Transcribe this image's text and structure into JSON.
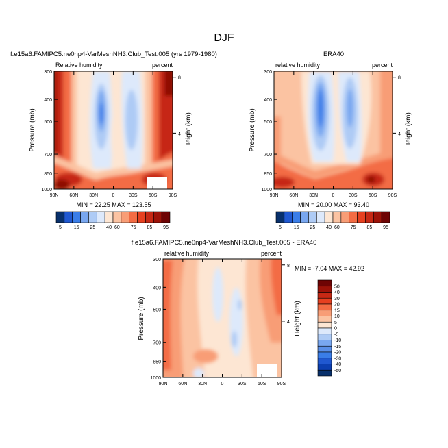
{
  "page_title": "DJF",
  "chart_data": [
    {
      "type": "heatmap",
      "title": "f.e15a6.FAMIPC5.ne0np4-VarMeshNH3.Club_Test.005 (yrs 1979-1980)",
      "left_label": "Relative humidity",
      "right_label": "percent",
      "xlabel": "",
      "ylabel": "Pressure (mb)",
      "right_axis_label": "Height (km)",
      "x_ticks": [
        "90N",
        "60N",
        "30N",
        "0",
        "30S",
        "60S",
        "90S"
      ],
      "y_ticks": [
        300,
        400,
        500,
        700,
        850,
        1000
      ],
      "right_ticks": [
        8,
        4
      ],
      "ylim": [
        1000,
        300
      ],
      "stats": "MIN = 22.25  MAX = 123.55",
      "min": 22.25,
      "max": 123.55,
      "levels": [
        5,
        15,
        25,
        40,
        60,
        75,
        85,
        95
      ],
      "colorbar_labels": [
        "5",
        "15",
        "25",
        "40",
        "60",
        "75",
        "85",
        "95"
      ],
      "colorbar_orientation": "horizontal"
    },
    {
      "type": "heatmap",
      "title": "ERA40",
      "left_label": "relative humidity",
      "right_label": "percent",
      "xlabel": "",
      "ylabel": "Pressure (mb)",
      "right_axis_label": "Height (km)",
      "x_ticks": [
        "90N",
        "60N",
        "30N",
        "0",
        "30S",
        "60S",
        "90S"
      ],
      "y_ticks": [
        300,
        400,
        500,
        700,
        850,
        1000
      ],
      "right_ticks": [
        8,
        4
      ],
      "ylim": [
        1000,
        300
      ],
      "stats": "MIN = 20.00  MAX = 93.40",
      "min": 20.0,
      "max": 93.4,
      "levels": [
        5,
        15,
        25,
        40,
        60,
        75,
        85,
        95
      ],
      "colorbar_labels": [
        "5",
        "15",
        "25",
        "40",
        "60",
        "75",
        "85",
        "95"
      ],
      "colorbar_orientation": "horizontal"
    },
    {
      "type": "heatmap",
      "title": "f.e15a6.FAMIPC5.ne0np4-VarMeshNH3.Club_Test.005 - ERA40",
      "left_label": "relative humidity",
      "right_label": "percent",
      "xlabel": "",
      "ylabel": "Pressure (mb)",
      "right_axis_label": "Height (km)",
      "x_ticks": [
        "90N",
        "60N",
        "30N",
        "0",
        "30S",
        "60S",
        "90S"
      ],
      "y_ticks": [
        300,
        400,
        500,
        700,
        850,
        1000
      ],
      "right_ticks": [
        8,
        4
      ],
      "ylim": [
        1000,
        300
      ],
      "stats": "MIN = -7.04  MAX = 42.92",
      "min": -7.04,
      "max": 42.92,
      "levels": [
        -50,
        -40,
        -30,
        -20,
        -15,
        -10,
        -5,
        0,
        5,
        10,
        15,
        20,
        30,
        40,
        50
      ],
      "colorbar_labels": [
        "50",
        "40",
        "30",
        "20",
        "15",
        "10",
        "5",
        "0",
        "-5",
        "-10",
        "-15",
        "-20",
        "-30",
        "-40",
        "-50"
      ],
      "colorbar_orientation": "vertical"
    }
  ],
  "colors": {
    "rh_scale": [
      "#08306b",
      "#2058d0",
      "#3a7de8",
      "#79a7f0",
      "#aecbf5",
      "#dde9fb",
      "#fde6d3",
      "#fbc3a2",
      "#f89d76",
      "#f36c44",
      "#e64020",
      "#c62814",
      "#9c1208",
      "#6e0404"
    ],
    "diff_scale": [
      "#6e0404",
      "#9c1208",
      "#c62814",
      "#e64020",
      "#f36c44",
      "#f89d76",
      "#fbc3a2",
      "#fde6d3",
      "#dde9fb",
      "#aecbf5",
      "#79a7f0",
      "#5a8fe8",
      "#3a7de8",
      "#2058d0",
      "#0c3fb0",
      "#08306b"
    ]
  }
}
